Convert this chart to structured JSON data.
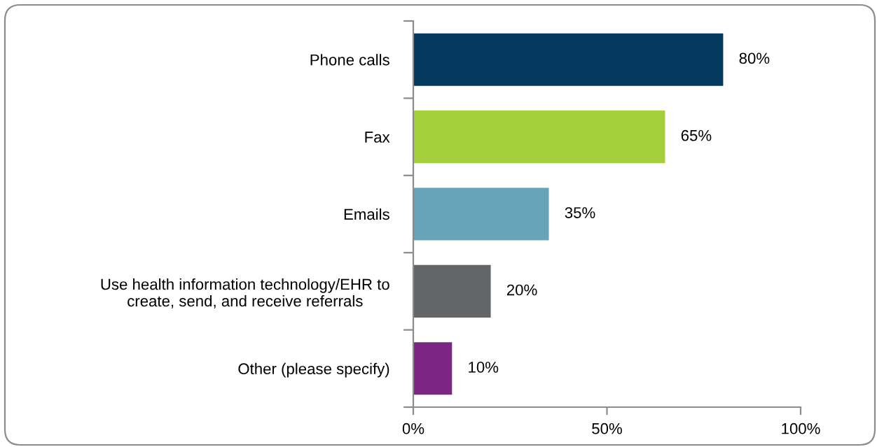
{
  "chart_data": {
    "type": "bar",
    "orientation": "horizontal",
    "categories": [
      "Phone calls",
      "Fax",
      "Emails",
      "Use health information technology/EHR to\ncreate, send, and receive referrals",
      "Other (please specify)"
    ],
    "values": [
      80,
      65,
      35,
      20,
      10
    ],
    "colors": [
      "#03395c",
      "#a3cf3c",
      "#67a3b9",
      "#636569",
      "#7b2682"
    ],
    "value_labels": [
      "80%",
      "65%",
      "35%",
      "20%",
      "10%"
    ],
    "xlim": [
      0,
      100
    ],
    "xticks": [
      {
        "value": 0,
        "label": "0%"
      },
      {
        "value": 50,
        "label": "50%"
      },
      {
        "value": 100,
        "label": "100%"
      }
    ],
    "grid": false,
    "legend": false
  }
}
